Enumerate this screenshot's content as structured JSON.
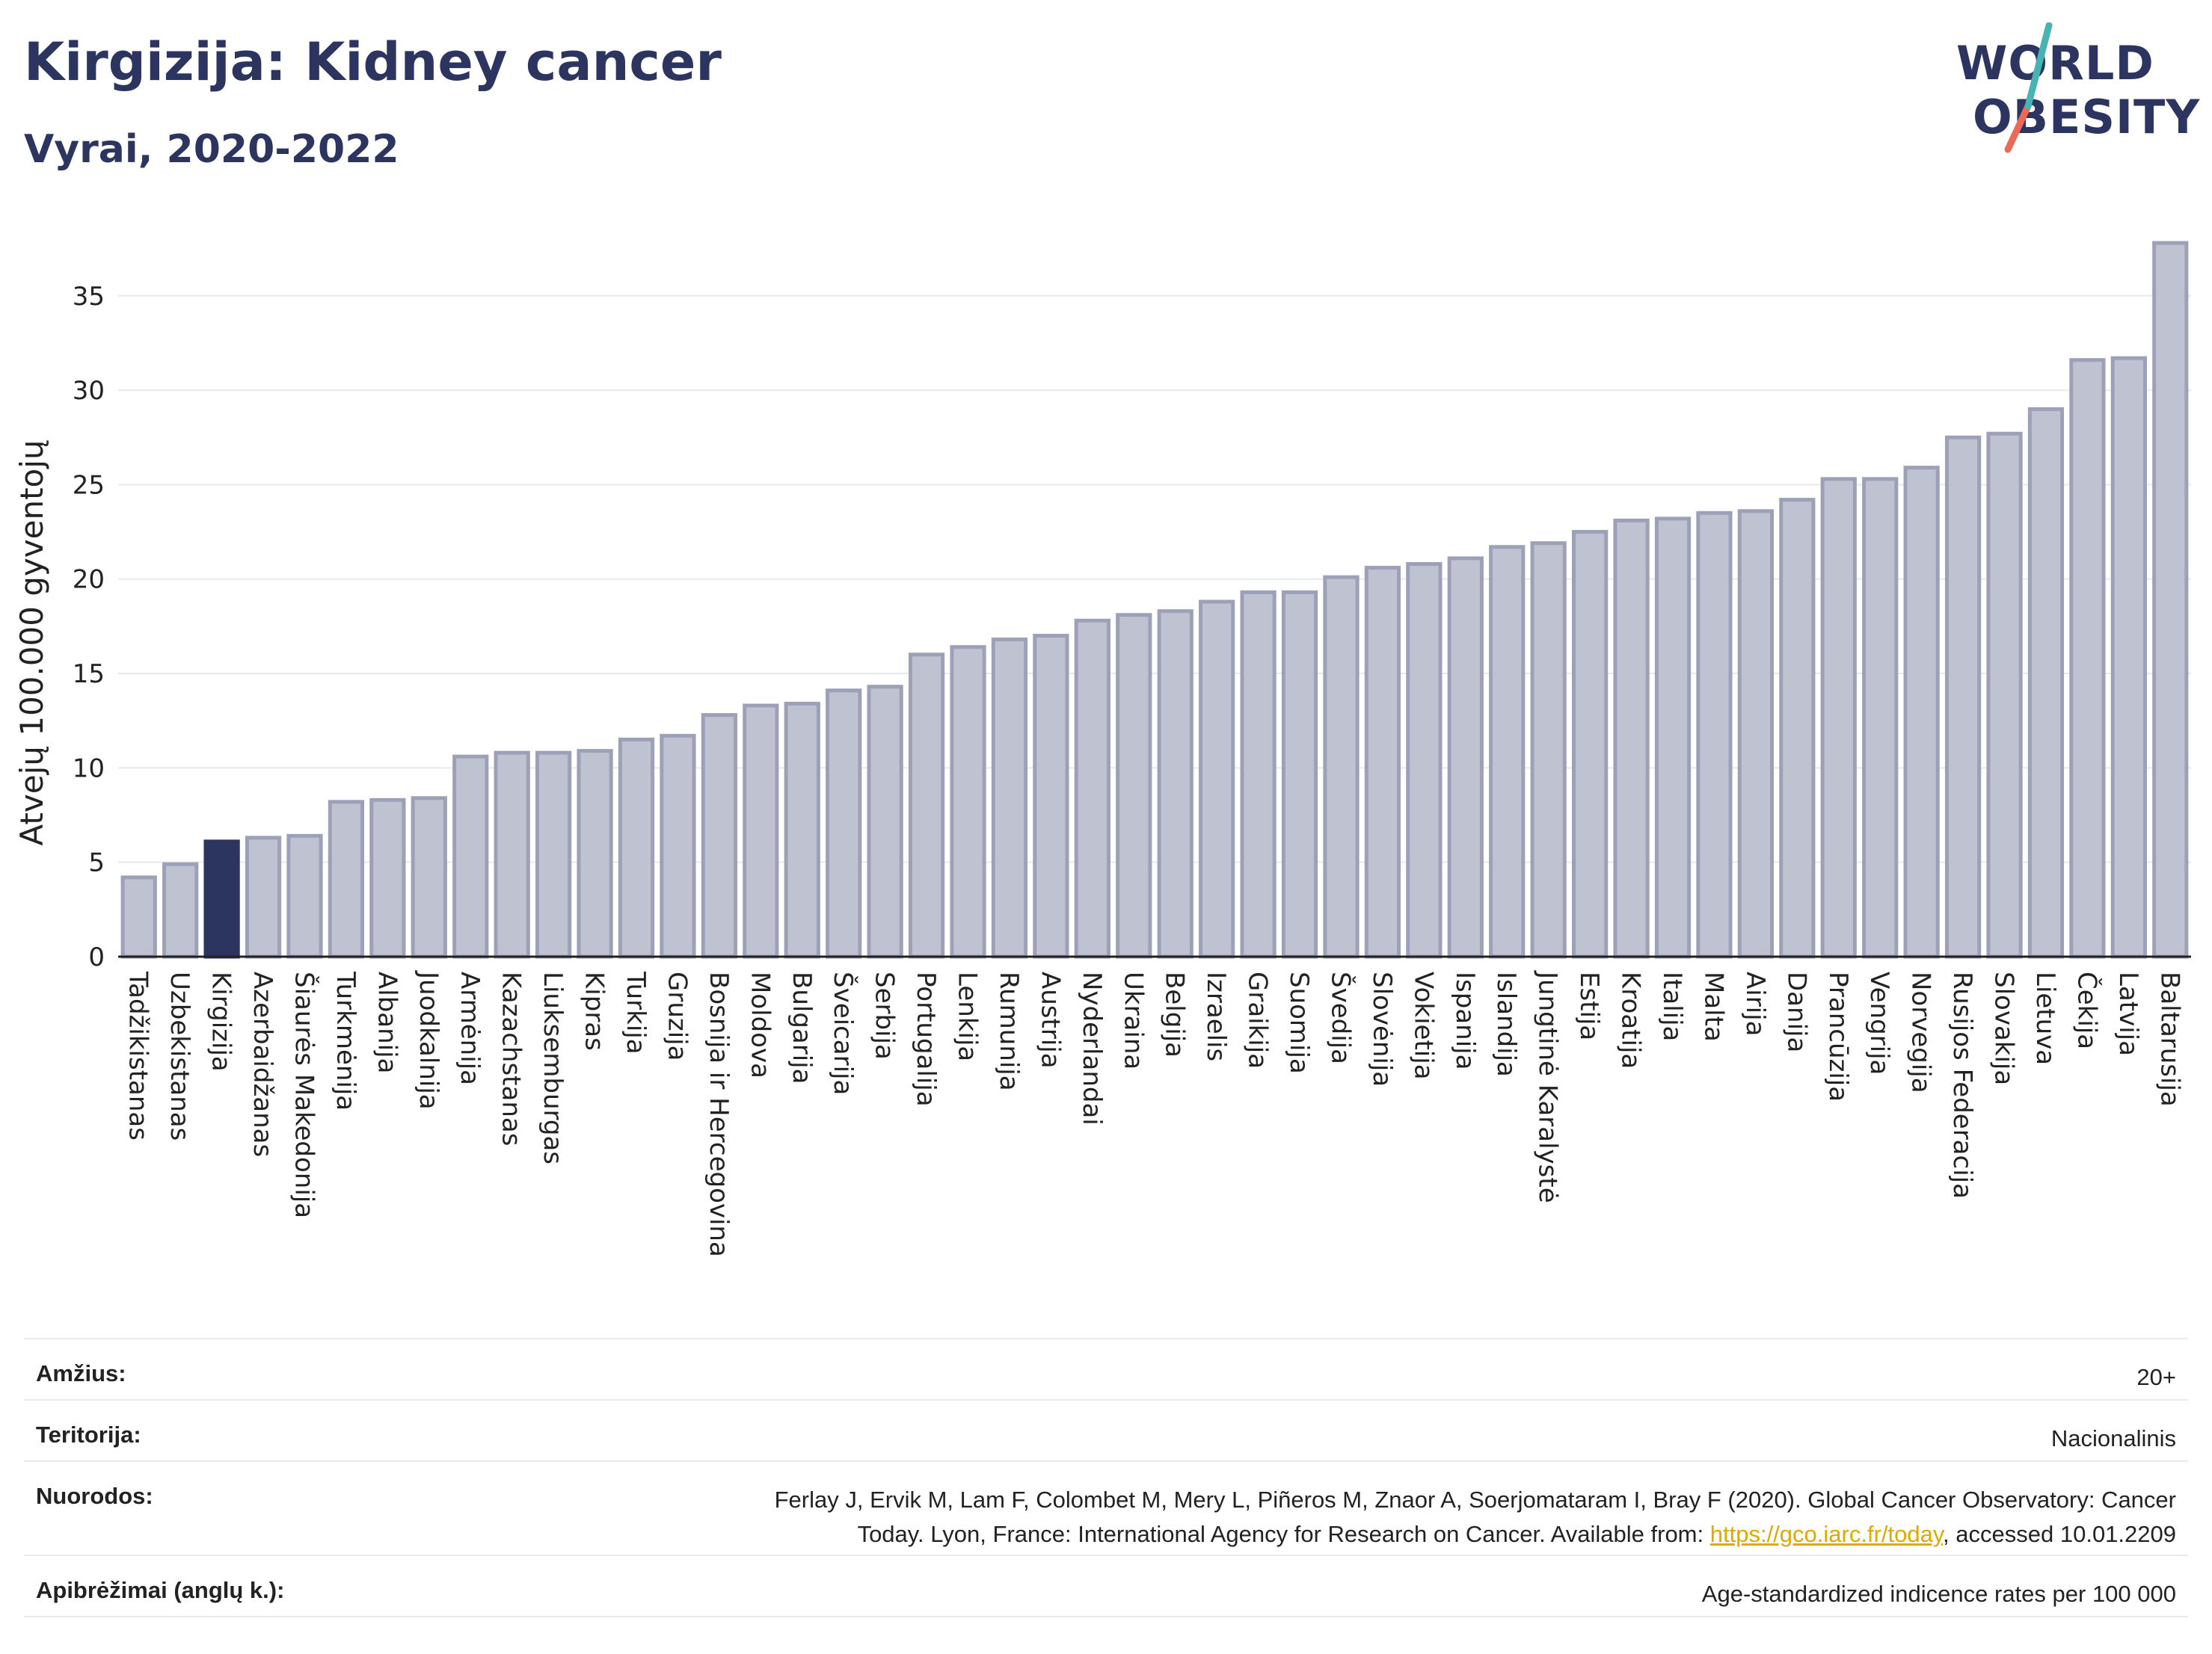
{
  "header": {
    "title": "Kirgizija: Kidney cancer",
    "subtitle": "Vyrai, 2020-2022"
  },
  "logo": {
    "line1": "WORLD",
    "line2": "OBESITY"
  },
  "colors": {
    "bar_fill": "#bfc3d1",
    "bar_stroke": "#9ca1b8",
    "highlight": "#2b3560",
    "grid": "#e6e9ee",
    "link": "#e0a800",
    "logo_slash_top": "#47b3b3",
    "logo_slash_bottom": "#e86a57"
  },
  "chart_data": {
    "type": "bar",
    "title": "Kirgizija: Kidney cancer",
    "subtitle": "Vyrai, 2020-2022",
    "xlabel": "",
    "ylabel": "Atvejų 100.000 gyventojų",
    "ylim": [
      0,
      38
    ],
    "yticks": [
      0,
      5,
      10,
      15,
      20,
      25,
      30,
      35
    ],
    "grid": true,
    "highlight": "Kirgizija",
    "categories": [
      "Tadžikistanas",
      "Uzbekistanas",
      "Kirgizija",
      "Azerbaidžanas",
      "Šiaurės Makedonija",
      "Turkmėnija",
      "Albanija",
      "Juodkalnija",
      "Armėnija",
      "Kazachstanas",
      "Liuksemburgas",
      "Kipras",
      "Turkija",
      "Gruzija",
      "Bosnija ir Hercegovina",
      "Moldova",
      "Bulgarija",
      "Šveicarija",
      "Serbija",
      "Portugalija",
      "Lenkija",
      "Rumunija",
      "Austrija",
      "Nyderlandai",
      "Ukraina",
      "Belgija",
      "Izraelis",
      "Graikija",
      "Suomija",
      "Švedija",
      "Slovėnija",
      "Vokietija",
      "Ispanija",
      "Islandija",
      "Jungtinė Karalystė",
      "Estija",
      "Kroatija",
      "Italija",
      "Malta",
      "Airija",
      "Danija",
      "Prancūzija",
      "Vengrija",
      "Norvegija",
      "Rusijos Federacija",
      "Slovakija",
      "Lietuva",
      "Čekija",
      "Latvija",
      "Baltarusija"
    ],
    "values": [
      4.2,
      4.9,
      6.1,
      6.3,
      6.4,
      8.2,
      8.3,
      8.4,
      10.6,
      10.8,
      10.8,
      10.9,
      11.5,
      11.7,
      12.8,
      13.3,
      13.4,
      14.1,
      14.3,
      16.0,
      16.4,
      16.8,
      17.0,
      17.8,
      18.1,
      18.3,
      18.8,
      19.3,
      19.3,
      20.1,
      20.6,
      20.8,
      21.1,
      21.7,
      21.9,
      22.5,
      23.1,
      23.2,
      23.5,
      23.6,
      24.2,
      25.3,
      25.3,
      25.9,
      27.5,
      27.7,
      29.0,
      31.6,
      31.7,
      37.8
    ]
  },
  "meta": [
    {
      "label": "Amžius:",
      "value": "20+"
    },
    {
      "label": "Teritorija:",
      "value": "Nacionalinis"
    },
    {
      "label": "Nuorodos:",
      "value_line1": "Ferlay J, Ervik M, Lam F, Colombet M, Mery L, Piñeros M, Znaor A, Soerjomataram I, Bray F (2020). Global Cancer Observatory: Cancer",
      "value_pre": "Today. Lyon, France: International Agency for Research on Cancer. Available from: ",
      "link": "https://gco.iarc.fr/today",
      "value_post": ", accessed 10.01.2209"
    },
    {
      "label": "Apibrėžimai (anglų k.):",
      "value": "Age-standardized indicence rates per 100 000"
    }
  ]
}
